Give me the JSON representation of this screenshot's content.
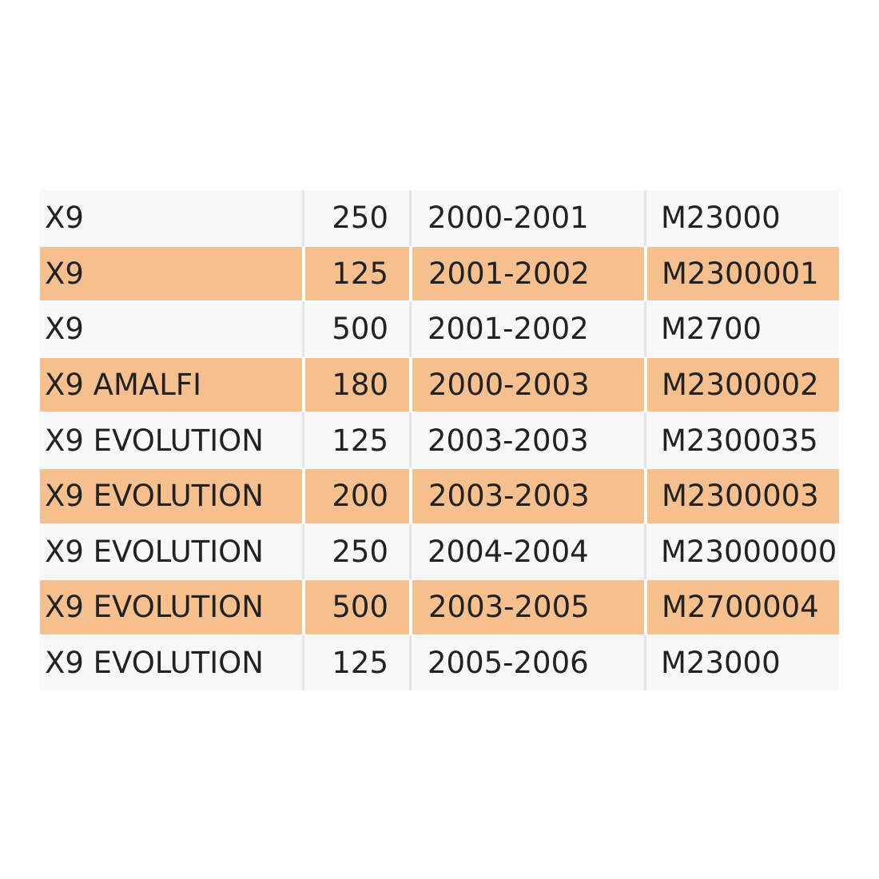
{
  "table": {
    "rows": [
      [
        "X9",
        "250",
        "2000-2001",
        "M23000"
      ],
      [
        "X9",
        "125",
        "2001-2002",
        "M2300001"
      ],
      [
        "X9",
        "500",
        "2001-2002",
        "M2700"
      ],
      [
        "X9 AMALFI",
        "180",
        "2000-2003",
        "M2300002"
      ],
      [
        "X9 EVOLUTION",
        "125",
        "2003-2003",
        "M2300035"
      ],
      [
        "X9 EVOLUTION",
        "200",
        "2003-2003",
        "M2300003"
      ],
      [
        "X9 EVOLUTION",
        "250",
        "2004-2004",
        "M23000000"
      ],
      [
        "X9 EVOLUTION",
        "500",
        "2003-2005",
        "M2700004"
      ],
      [
        "X9 EVOLUTION",
        "125",
        "2005-2006",
        "M23000"
      ]
    ]
  }
}
